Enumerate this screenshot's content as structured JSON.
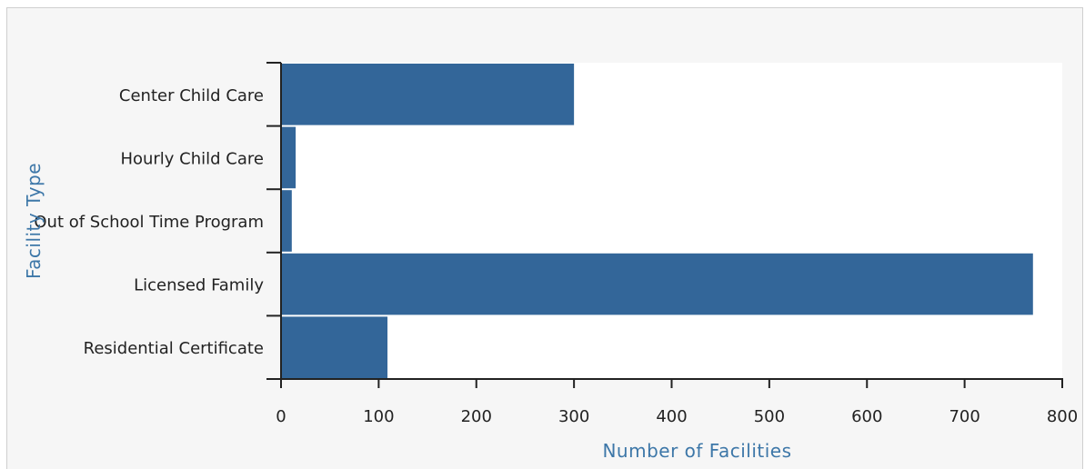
{
  "chart_data": {
    "type": "bar",
    "orientation": "horizontal",
    "categories": [
      "Center Child Care",
      "Hourly Child Care",
      "Out of School Time Program",
      "Licensed Family",
      "Residential Certificate"
    ],
    "values": [
      300,
      15,
      11,
      770,
      109
    ],
    "xlabel": "Number of Facilities",
    "ylabel": "Facility Type",
    "xlim": [
      0,
      800
    ],
    "xticks": [
      "0",
      "100",
      "200",
      "300",
      "400",
      "500",
      "600",
      "700",
      "800"
    ],
    "grid": false,
    "legend": "none"
  },
  "colors": {
    "bar": "#336699",
    "axis_title": "#3d77a8",
    "plot_background": "#ffffff",
    "frame_background": "#f6f6f6"
  }
}
